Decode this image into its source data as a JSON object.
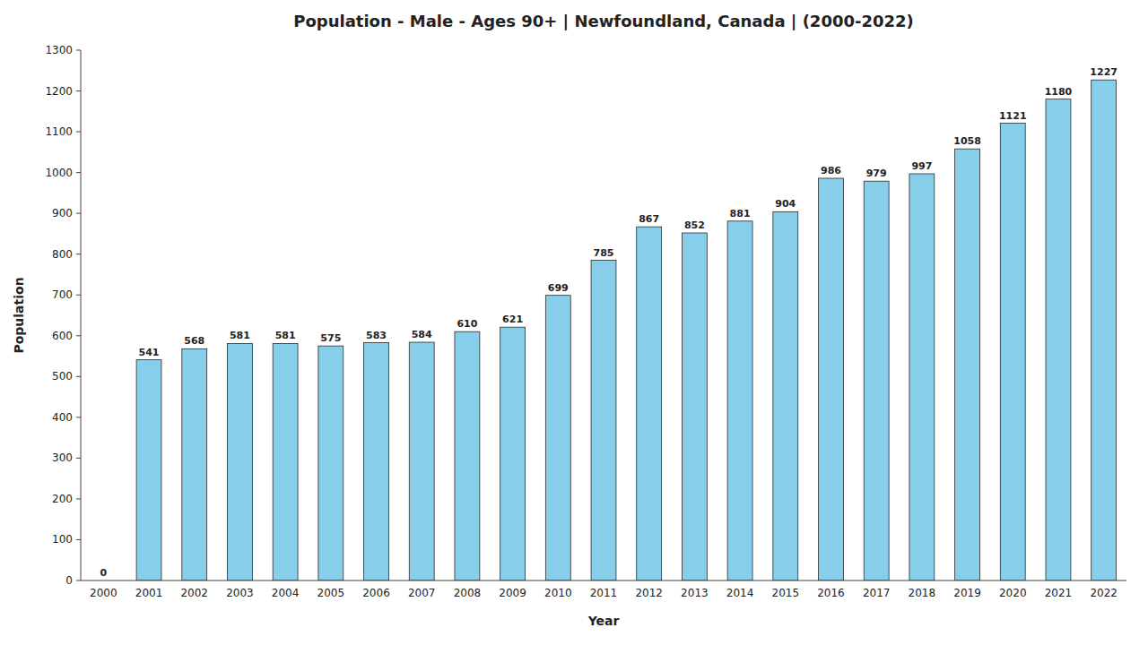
{
  "chart_data": {
    "type": "bar",
    "title": "Population - Male - Ages 90+ | Newfoundland, Canada |  (2000-2022)",
    "x_label": "Year",
    "y_label": "Population",
    "categories": [
      "2000",
      "2001",
      "2002",
      "2003",
      "2004",
      "2005",
      "2006",
      "2007",
      "2008",
      "2009",
      "2010",
      "2011",
      "2012",
      "2013",
      "2014",
      "2015",
      "2016",
      "2017",
      "2018",
      "2019",
      "2020",
      "2021",
      "2022"
    ],
    "values": [
      0,
      541,
      568,
      581,
      581,
      575,
      583,
      584,
      610,
      621,
      699,
      785,
      867,
      852,
      881,
      904,
      986,
      979,
      997,
      1058,
      1121,
      1180,
      1227
    ],
    "color": "#87CEEB",
    "ylim": [
      0,
      1300
    ],
    "yticks": [
      0,
      100,
      200,
      300,
      400,
      500,
      600,
      700,
      800,
      900,
      1000,
      1100,
      1200,
      1300
    ],
    "grid": false,
    "data_labels": true
  }
}
